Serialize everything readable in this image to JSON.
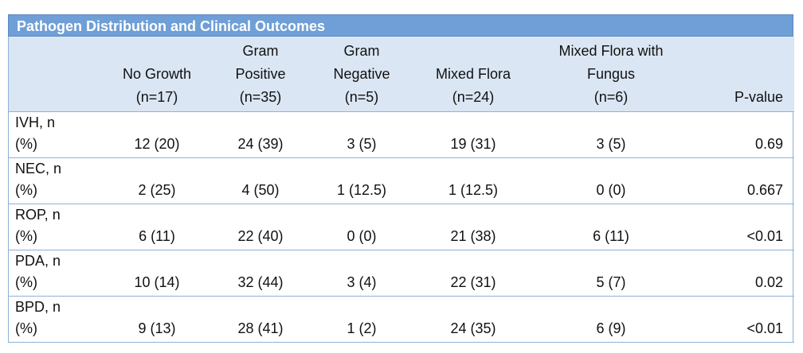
{
  "title": "Pathogen Distribution and Clinical Outcomes",
  "columns": [
    {
      "line1": "",
      "line2": "No Growth",
      "line3": "(n=17)"
    },
    {
      "line1": "Gram",
      "line2": "Positive",
      "line3": "(n=35)"
    },
    {
      "line1": "Gram",
      "line2": "Negative",
      "line3": "(n=5)"
    },
    {
      "line1": "",
      "line2": "Mixed Flora",
      "line3": "(n=24)"
    },
    {
      "line1": "Mixed Flora with",
      "line2": "Fungus",
      "line3": "(n=6)"
    }
  ],
  "pvalue_header": "P-value",
  "rows": [
    {
      "label1": "IVH, n",
      "label2": "(%)",
      "values": [
        "12 (20)",
        "24 (39)",
        "3 (5)",
        "19 (31)",
        "3 (5)"
      ],
      "p": "0.69"
    },
    {
      "label1": "NEC, n",
      "label2": "(%)",
      "values": [
        "2 (25)",
        "4 (50)",
        "1 (12.5)",
        "1 (12.5)",
        "0 (0)"
      ],
      "p": "0.667"
    },
    {
      "label1": "ROP, n",
      "label2": "(%)",
      "values": [
        "6 (11)",
        "22 (40)",
        "0 (0)",
        "21 (38)",
        "6 (11)"
      ],
      "p": "<0.01"
    },
    {
      "label1": "PDA, n",
      "label2": "(%)",
      "values": [
        "10 (14)",
        "32 (44)",
        "3 (4)",
        "22 (31)",
        "5 (7)"
      ],
      "p": "0.02"
    },
    {
      "label1": "BPD, n",
      "label2": "(%)",
      "values": [
        "9 (13)",
        "28 (41)",
        "1 (2)",
        "24 (35)",
        "6 (9)"
      ],
      "p": "<0.01"
    }
  ]
}
